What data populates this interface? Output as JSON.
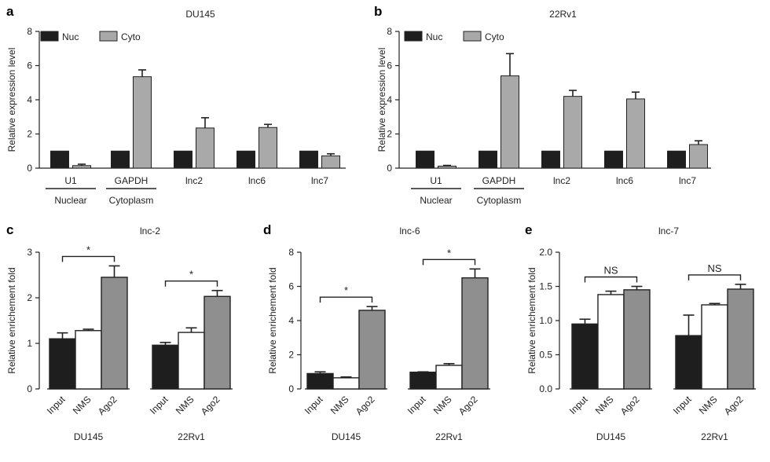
{
  "colors": {
    "dark": "#1e1e1e",
    "light_gray": "#a9a9a9",
    "mid_gray": "#8f8f8f",
    "white": "#ffffff",
    "axis": "#222222"
  },
  "chart_data": [
    {
      "letter": "a",
      "type": "bar",
      "title": "DU145",
      "ylabel": "Relative expression level",
      "ylim": [
        0,
        8
      ],
      "yticks": [
        0,
        2,
        4,
        6,
        8
      ],
      "categories": [
        "U1",
        "GAPDH",
        "lnc2",
        "lnc6",
        "lnc7"
      ],
      "groups": [
        {
          "label": "Nuclear",
          "start": 0,
          "end": 0
        },
        {
          "label": "Cytoplasm",
          "start": 1,
          "end": 1
        }
      ],
      "legend": [
        "Nuc",
        "Cyto"
      ],
      "legend_position": "top-left",
      "series": [
        {
          "name": "Nuc",
          "values": [
            1.0,
            1.0,
            1.0,
            1.0,
            1.0
          ],
          "errors": [
            0,
            0,
            0,
            0,
            0
          ]
        },
        {
          "name": "Cyto",
          "values": [
            0.15,
            5.35,
            2.35,
            2.38,
            0.72
          ],
          "errors": [
            0.08,
            0.4,
            0.6,
            0.18,
            0.12
          ]
        }
      ]
    },
    {
      "letter": "b",
      "type": "bar",
      "title": "22Rv1",
      "ylabel": "Relative expression level",
      "ylim": [
        0,
        8
      ],
      "yticks": [
        0,
        2,
        4,
        6,
        8
      ],
      "categories": [
        "U1",
        "GAPDH",
        "lnc2",
        "lnc6",
        "lnc7"
      ],
      "groups": [
        {
          "label": "Nuclear",
          "start": 0,
          "end": 0
        },
        {
          "label": "Cytoplasm",
          "start": 1,
          "end": 1
        }
      ],
      "legend": [
        "Nuc",
        "Cyto"
      ],
      "legend_position": "top-left",
      "series": [
        {
          "name": "Nuc",
          "values": [
            1.0,
            1.0,
            1.0,
            1.0,
            1.0
          ],
          "errors": [
            0,
            0,
            0,
            0,
            0
          ]
        },
        {
          "name": "Cyto",
          "values": [
            0.12,
            5.4,
            4.2,
            4.05,
            1.38
          ],
          "errors": [
            0.04,
            1.3,
            0.35,
            0.4,
            0.22
          ]
        }
      ]
    },
    {
      "letter": "c",
      "type": "bar",
      "title": "lnc-2",
      "ylabel": "Relative enrichement fold",
      "ylim": [
        0,
        3
      ],
      "yticks": [
        0,
        1,
        2,
        3
      ],
      "tick_format": "int",
      "categories": [
        "Input",
        "NMS",
        "Ago2"
      ],
      "cell_lines": [
        "DU145",
        "22Rv1"
      ],
      "values": [
        [
          1.1,
          1.28,
          2.45
        ],
        [
          0.96,
          1.24,
          2.03
        ]
      ],
      "errors": [
        [
          0.13,
          0.03,
          0.25
        ],
        [
          0.06,
          0.1,
          0.13
        ]
      ],
      "significance": [
        "*",
        "*"
      ]
    },
    {
      "letter": "d",
      "type": "bar",
      "title": "lnc-6",
      "ylabel": "Relative enrichement fold",
      "ylim": [
        0,
        8
      ],
      "yticks": [
        0,
        2,
        4,
        6,
        8
      ],
      "tick_format": "int",
      "categories": [
        "Input",
        "NMS",
        "Ago2"
      ],
      "cell_lines": [
        "DU145",
        "22Rv1"
      ],
      "values": [
        [
          0.9,
          0.65,
          4.6
        ],
        [
          0.98,
          1.38,
          6.5
        ]
      ],
      "errors": [
        [
          0.1,
          0.05,
          0.22
        ],
        [
          0.02,
          0.1,
          0.52
        ]
      ],
      "significance": [
        "*",
        "*"
      ]
    },
    {
      "letter": "e",
      "type": "bar",
      "title": "lnc-7",
      "ylabel": "Relative enrichement fold",
      "ylim": [
        0,
        2
      ],
      "yticks": [
        0,
        0.5,
        1,
        1.5,
        2
      ],
      "tick_format": "1dp",
      "categories": [
        "Input",
        "NMS",
        "Ago2"
      ],
      "cell_lines": [
        "DU145",
        "22Rv1"
      ],
      "values": [
        [
          0.95,
          1.38,
          1.45
        ],
        [
          0.78,
          1.23,
          1.46
        ]
      ],
      "errors": [
        [
          0.07,
          0.05,
          0.05
        ],
        [
          0.3,
          0.02,
          0.07
        ]
      ],
      "significance": [
        "NS",
        "NS"
      ]
    }
  ]
}
